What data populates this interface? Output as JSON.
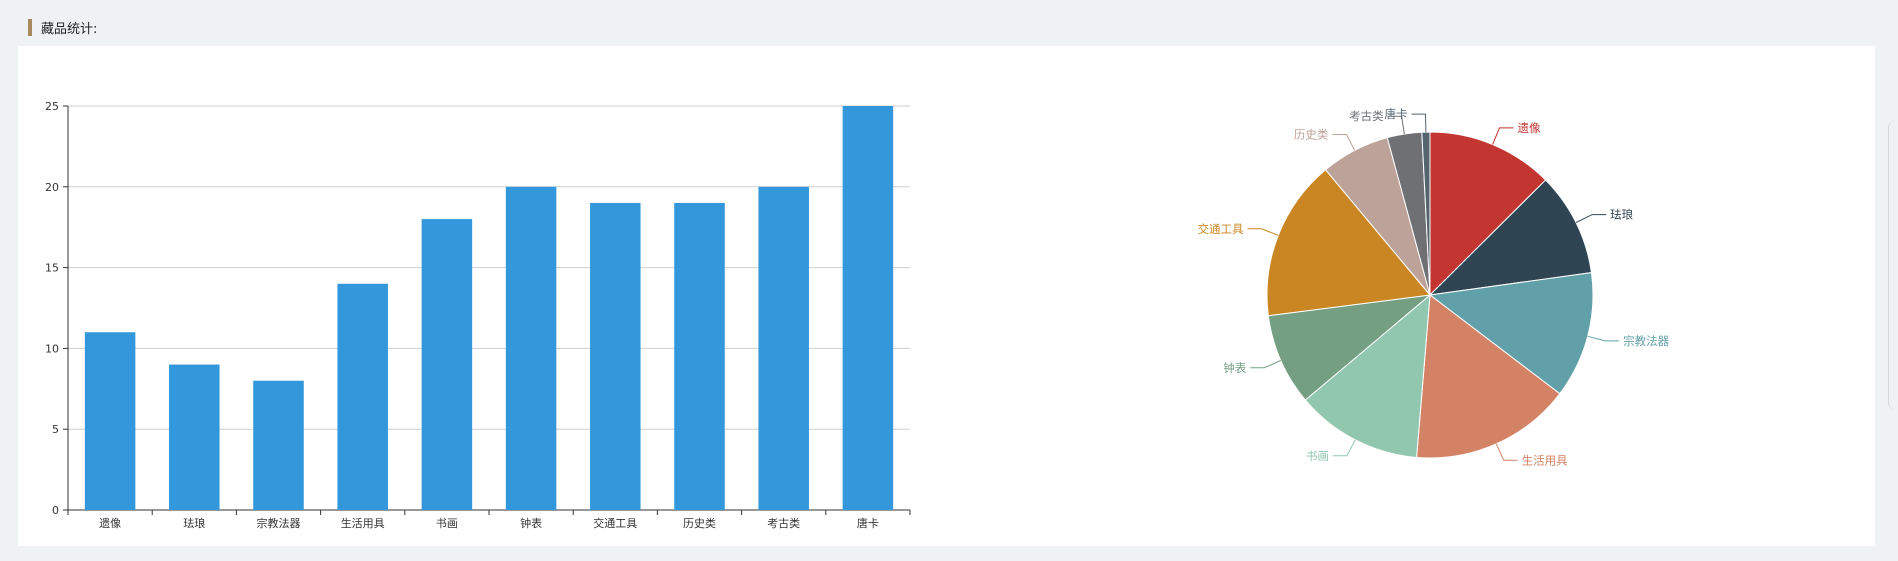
{
  "header": {
    "title": "藏品统计:"
  },
  "chart_data": [
    {
      "type": "bar",
      "categories": [
        "遗像",
        "珐琅",
        "宗教法器",
        "生活用具",
        "书画",
        "钟表",
        "交通工具",
        "历史类",
        "考古类",
        "唐卡"
      ],
      "values": [
        11,
        9,
        8,
        14,
        18,
        20,
        19,
        19,
        20,
        25
      ],
      "ylim": [
        0,
        25
      ],
      "yticks": [
        0,
        5,
        10,
        15,
        20,
        25
      ],
      "grid": true,
      "color": "#3398db"
    },
    {
      "type": "pie",
      "slices": [
        {
          "label": "遗像",
          "value": 11,
          "color": "#c23531"
        },
        {
          "label": "珐琅",
          "value": 9,
          "color": "#2f4554"
        },
        {
          "label": "宗教法器",
          "value": 11,
          "color": "#61a0a8"
        },
        {
          "label": "生活用具",
          "value": 14,
          "color": "#d48265"
        },
        {
          "label": "书画",
          "value": 11,
          "color": "#91c7ae"
        },
        {
          "label": "钟表",
          "value": 8,
          "color": "#749f83"
        },
        {
          "label": "交通工具",
          "value": 14,
          "color": "#ca8622"
        },
        {
          "label": "历史类",
          "value": 6,
          "color": "#bda29a"
        },
        {
          "label": "考古类",
          "value": 3,
          "color": "#6e7074"
        },
        {
          "label": "唐卡",
          "value": 0.7,
          "color": "#546570"
        }
      ]
    }
  ]
}
